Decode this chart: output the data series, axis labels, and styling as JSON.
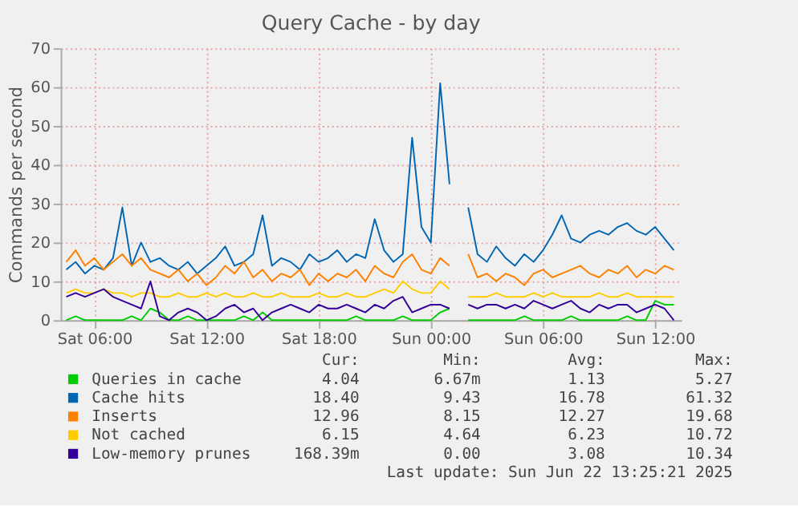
{
  "chart_data": {
    "type": "line",
    "title": "Query Cache - by day",
    "ylabel": "Commands per second",
    "x": [
      "2025-06-21T04:30",
      "2025-06-21T05:00",
      "2025-06-21T05:30",
      "2025-06-21T06:00",
      "2025-06-21T06:30",
      "2025-06-21T07:00",
      "2025-06-21T07:30",
      "2025-06-21T08:00",
      "2025-06-21T08:30",
      "2025-06-21T09:00",
      "2025-06-21T09:30",
      "2025-06-21T10:00",
      "2025-06-21T10:30",
      "2025-06-21T11:00",
      "2025-06-21T11:30",
      "2025-06-21T12:00",
      "2025-06-21T12:30",
      "2025-06-21T13:00",
      "2025-06-21T13:30",
      "2025-06-21T14:00",
      "2025-06-21T14:30",
      "2025-06-21T15:00",
      "2025-06-21T15:30",
      "2025-06-21T16:00",
      "2025-06-21T16:30",
      "2025-06-21T17:00",
      "2025-06-21T17:30",
      "2025-06-21T18:00",
      "2025-06-21T18:30",
      "2025-06-21T19:00",
      "2025-06-21T19:30",
      "2025-06-21T20:00",
      "2025-06-21T20:30",
      "2025-06-21T21:00",
      "2025-06-21T21:30",
      "2025-06-21T22:00",
      "2025-06-21T22:30",
      "2025-06-21T23:00",
      "2025-06-21T23:30",
      "2025-06-22T00:00",
      "2025-06-22T00:30",
      "2025-06-22T01:00",
      "2025-06-22T01:30",
      "2025-06-22T02:00",
      "2025-06-22T02:30",
      "2025-06-22T03:00",
      "2025-06-22T03:30",
      "2025-06-22T04:00",
      "2025-06-22T04:30",
      "2025-06-22T05:00",
      "2025-06-22T05:30",
      "2025-06-22T06:00",
      "2025-06-22T06:30",
      "2025-06-22T07:00",
      "2025-06-22T07:30",
      "2025-06-22T08:00",
      "2025-06-22T08:30",
      "2025-06-22T09:00",
      "2025-06-22T09:30",
      "2025-06-22T10:00",
      "2025-06-22T10:30",
      "2025-06-22T11:00",
      "2025-06-22T11:30",
      "2025-06-22T12:00",
      "2025-06-22T12:30",
      "2025-06-22T13:00"
    ],
    "xlim": [
      "2025-06-21T04:12",
      "2025-06-22T13:24"
    ],
    "xticks": [
      {
        "value": "2025-06-21T06:00",
        "label": "Sat 06:00"
      },
      {
        "value": "2025-06-21T12:00",
        "label": "Sat 12:00"
      },
      {
        "value": "2025-06-21T18:00",
        "label": "Sat 18:00"
      },
      {
        "value": "2025-06-22T00:00",
        "label": "Sun 00:00"
      },
      {
        "value": "2025-06-22T06:00",
        "label": "Sun 06:00"
      },
      {
        "value": "2025-06-22T12:00",
        "label": "Sun 12:00"
      }
    ],
    "ylim": [
      0,
      70
    ],
    "yticks": [
      0,
      10,
      20,
      30,
      40,
      50,
      60,
      70
    ],
    "grid": true,
    "legend": "bottom left",
    "marker": "none",
    "line_style": "solid",
    "series": [
      {
        "name": "Queries in cache",
        "color": "#00cc00",
        "values": [
          0,
          1,
          0,
          0,
          0,
          0,
          0,
          1,
          0,
          3,
          2,
          0,
          0,
          1,
          0,
          0,
          0,
          0,
          0,
          1,
          0,
          2,
          0,
          0,
          0,
          0,
          0,
          0,
          0,
          0,
          0,
          1,
          0,
          0,
          0,
          0,
          1,
          0,
          0,
          0,
          2,
          3,
          null,
          0,
          0,
          0,
          0,
          0,
          0,
          1,
          0,
          0,
          0,
          0,
          1,
          0,
          0,
          0,
          0,
          0,
          1,
          0,
          0,
          5,
          4,
          4
        ]
      },
      {
        "name": "Cache hits",
        "color": "#0066b3",
        "values": [
          13,
          15,
          12,
          14,
          13,
          16,
          29,
          14,
          20,
          15,
          16,
          14,
          13,
          15,
          12,
          14,
          16,
          19,
          14,
          15,
          17,
          27,
          14,
          16,
          15,
          13,
          17,
          15,
          16,
          18,
          15,
          17,
          16,
          26,
          18,
          15,
          17,
          47,
          24,
          20,
          61,
          35,
          null,
          29,
          17,
          15,
          19,
          16,
          14,
          17,
          15,
          18,
          22,
          27,
          21,
          20,
          22,
          23,
          22,
          24,
          25,
          23,
          22,
          24,
          21,
          18
        ]
      },
      {
        "name": "Inserts",
        "color": "#ff8000",
        "values": [
          15,
          18,
          14,
          16,
          13,
          15,
          17,
          14,
          16,
          13,
          12,
          11,
          13,
          10,
          12,
          9,
          11,
          14,
          12,
          15,
          11,
          13,
          10,
          12,
          11,
          13,
          9,
          12,
          10,
          12,
          11,
          13,
          10,
          14,
          12,
          11,
          15,
          17,
          13,
          12,
          16,
          14,
          null,
          17,
          11,
          12,
          10,
          12,
          11,
          9,
          12,
          13,
          11,
          12,
          13,
          14,
          12,
          11,
          13,
          12,
          14,
          11,
          13,
          12,
          14,
          13
        ]
      },
      {
        "name": "Not cached",
        "color": "#ffcc00",
        "values": [
          7,
          8,
          7,
          7,
          8,
          7,
          7,
          6,
          7,
          7,
          6,
          6,
          7,
          6,
          6,
          7,
          6,
          7,
          6,
          6,
          7,
          6,
          6,
          7,
          6,
          6,
          6,
          7,
          6,
          6,
          7,
          6,
          6,
          7,
          8,
          7,
          10,
          8,
          7,
          7,
          10,
          8,
          null,
          6,
          6,
          6,
          7,
          6,
          6,
          6,
          7,
          6,
          7,
          6,
          6,
          6,
          6,
          7,
          6,
          6,
          7,
          6,
          6,
          6,
          6,
          6
        ]
      },
      {
        "name": "Low-memory prunes",
        "color": "#330099",
        "values": [
          6,
          7,
          6,
          7,
          8,
          6,
          5,
          4,
          3,
          10,
          1,
          0,
          2,
          3,
          2,
          0,
          1,
          3,
          4,
          2,
          3,
          0,
          2,
          3,
          4,
          3,
          2,
          4,
          3,
          3,
          4,
          3,
          2,
          4,
          3,
          5,
          6,
          2,
          3,
          4,
          4,
          3,
          null,
          4,
          3,
          4,
          4,
          3,
          4,
          3,
          5,
          4,
          3,
          4,
          5,
          3,
          2,
          4,
          3,
          4,
          4,
          2,
          3,
          4,
          3,
          0
        ]
      }
    ],
    "annotations": [
      "Cur:",
      "Min:",
      "Avg:",
      "Max:",
      "4.04",
      "6.67m",
      "1.13",
      "5.27",
      "18.40",
      "9.43",
      "16.78",
      "61.32",
      "12.96",
      "8.15",
      "12.27",
      "19.68",
      "6.15",
      "4.64",
      "6.23",
      "10.72",
      "168.39m",
      "0.00",
      "3.08",
      "10.34",
      "Last update: Sun Jun 22 13:25:21 2025"
    ]
  }
}
